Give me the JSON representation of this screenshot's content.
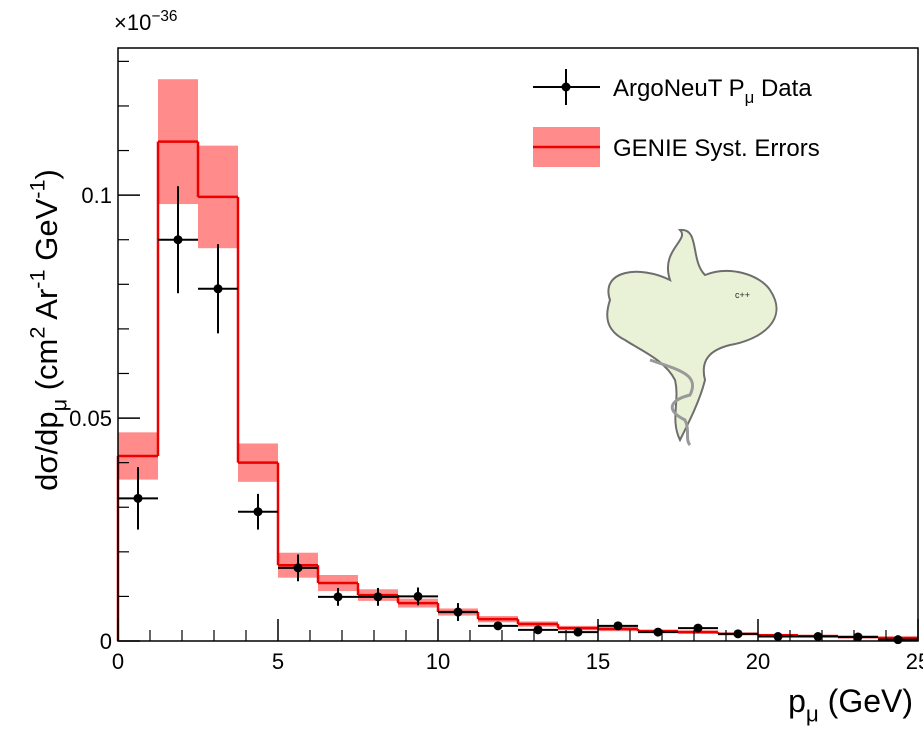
{
  "chart_data": {
    "type": "histogram",
    "multiplier": [
      {
        "text": "×10"
      },
      {
        "text": "−36",
        "script": "super"
      }
    ],
    "xlabel": [
      {
        "text": "p"
      },
      {
        "text": "μ",
        "script": "sub"
      },
      {
        "text": " (GeV)"
      }
    ],
    "ylabel": [
      {
        "text": "dσ/dp"
      },
      {
        "text": "μ",
        "script": "sub"
      },
      {
        "text": " (cm"
      },
      {
        "text": "2",
        "script": "super"
      },
      {
        "text": " Ar"
      },
      {
        "text": "-1",
        "script": "super"
      },
      {
        "text": " GeV"
      },
      {
        "text": "-1",
        "script": "super"
      },
      {
        "text": ")"
      }
    ],
    "bins": [
      0,
      1.25,
      2.5,
      3.75,
      5,
      6.25,
      7.5,
      8.75,
      10,
      11.25,
      12.5,
      13.75,
      15,
      16.25,
      17.5,
      18.75,
      20,
      21.25,
      22.5,
      23.75,
      25
    ],
    "series": [
      {
        "name": [
          {
            "text": "ArgoNeuT P"
          },
          {
            "text": "μ",
            "script": "sub"
          },
          {
            "text": " Data"
          }
        ],
        "color": "#000000",
        "style": "points",
        "values": [
          0.032,
          0.09,
          0.079,
          0.029,
          0.0164,
          0.0099,
          0.0099,
          0.01,
          0.0065,
          0.0034,
          0.0025,
          0.002,
          0.0034,
          0.002,
          0.0029,
          0.0016,
          0.001,
          0.001,
          0.0009,
          0.0003
        ],
        "errors": [
          0.007,
          0.012,
          0.01,
          0.004,
          0.003,
          0.002,
          0.002,
          0.002,
          0.002,
          0.0008,
          0.0006,
          0.0005,
          0.0006,
          0.0005,
          0.0006,
          0.0005,
          0.0004,
          0.0004,
          0.0004,
          0.0003
        ]
      },
      {
        "name": [
          {
            "text": "GENIE Syst. Errors"
          }
        ],
        "color": "#ee0000",
        "band_color": "#ff7777",
        "style": "step",
        "values": [
          0.0415,
          0.112,
          0.0996,
          0.04,
          0.017,
          0.013,
          0.0103,
          0.0085,
          0.0065,
          0.0049,
          0.0038,
          0.0029,
          0.0027,
          0.0022,
          0.002,
          0.0016,
          0.0013,
          0.0011,
          0.0009,
          0.0007
        ],
        "errors": [
          0.0053,
          0.014,
          0.0115,
          0.0043,
          0.0028,
          0.0018,
          0.0013,
          0.001,
          0.0008,
          0.0007,
          0.0006,
          0.0005,
          0.0005,
          0.0004,
          0.0004,
          0.0003,
          0.0003,
          0.0003,
          0.0003,
          0.0003
        ]
      }
    ],
    "xlim": [
      0,
      25
    ],
    "xticks": [
      0,
      5,
      10,
      15,
      20,
      25
    ],
    "ylim": [
      0,
      0.133
    ],
    "yticks": [
      0,
      0.05,
      0.1
    ],
    "legend": "upper-right"
  }
}
